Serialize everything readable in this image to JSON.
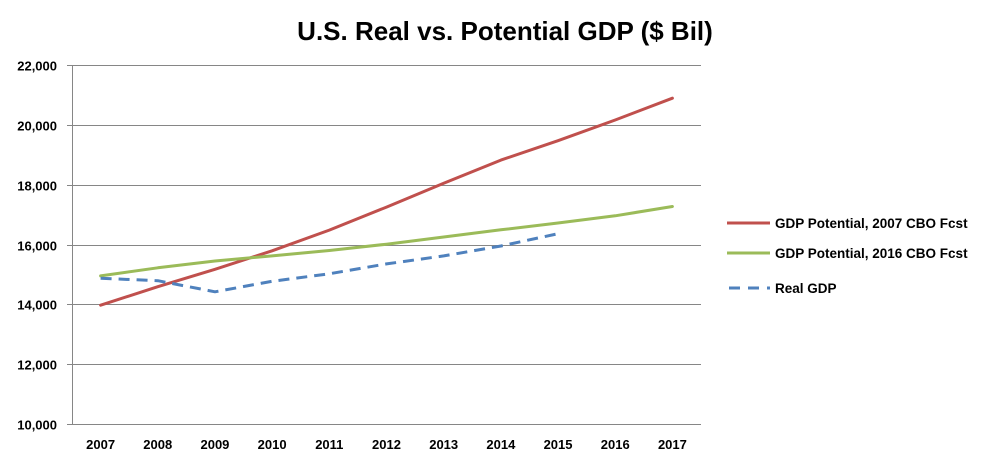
{
  "chart_data": {
    "type": "line",
    "title": "U.S. Real vs. Potential GDP ($ Bil)",
    "xlabel": "",
    "ylabel": "",
    "categories": [
      "2007",
      "2008",
      "2009",
      "2010",
      "2011",
      "2012",
      "2013",
      "2014",
      "2015",
      "2016",
      "2017"
    ],
    "ylim": [
      10000,
      22000
    ],
    "yticks": [
      10000,
      12000,
      14000,
      16000,
      18000,
      20000,
      22000
    ],
    "ytick_labels": [
      "10,000",
      "12,000",
      "14,000",
      "16,000",
      "18,000",
      "20,000",
      "22,000"
    ],
    "grid": true,
    "legend_position": "right",
    "series": [
      {
        "name": "GDP Potential, 2007 CBO Fcst",
        "color": "#C0504D",
        "style": "solid",
        "values": [
          13970,
          14590,
          15170,
          15790,
          16480,
          17250,
          18050,
          18820,
          19470,
          20160,
          20890
        ]
      },
      {
        "name": "GDP Potential, 2016 CBO Fcst",
        "color": "#9BBB59",
        "style": "solid",
        "values": [
          14950,
          15220,
          15450,
          15620,
          15800,
          16010,
          16250,
          16490,
          16720,
          16960,
          17270
        ]
      },
      {
        "name": "Real GDP",
        "color": "#4F81BD",
        "style": "dashed",
        "values": [
          14870,
          14790,
          14420,
          14770,
          15020,
          15350,
          15620,
          15950,
          16360,
          null,
          null
        ]
      }
    ]
  }
}
